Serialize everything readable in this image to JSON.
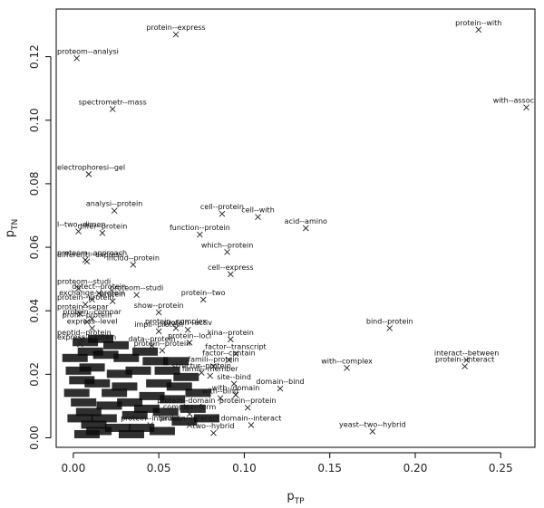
{
  "chart_data": {
    "type": "scatter",
    "xlabel": "p",
    "xlabel_sub": "TP",
    "ylabel": "p",
    "ylabel_sub": "TN",
    "xlim": [
      -0.01,
      0.27
    ],
    "ylim": [
      -0.003,
      0.135
    ],
    "x_ticks": [
      0.0,
      0.05,
      0.1,
      0.15,
      0.2,
      0.25
    ],
    "x_tick_labels": [
      "0.00",
      "0.05",
      "0.10",
      "0.15",
      "0.20",
      "0.25"
    ],
    "y_ticks": [
      0.0,
      0.02,
      0.04,
      0.06,
      0.08,
      0.1,
      0.12
    ],
    "y_tick_labels": [
      "0.00",
      "0.02",
      "0.04",
      "0.06",
      "0.08",
      "0.10",
      "0.12"
    ],
    "points": [
      {
        "x": 0.237,
        "y": 0.1285,
        "label": "protein--with"
      },
      {
        "x": 0.06,
        "y": 0.127,
        "label": "protein--express"
      },
      {
        "x": 0.002,
        "y": 0.1195,
        "label": "proteom--analysi"
      },
      {
        "x": 0.265,
        "y": 0.104,
        "label": "with--assoc"
      },
      {
        "x": 0.023,
        "y": 0.1035,
        "label": "spectrometr--mass"
      },
      {
        "x": 0.009,
        "y": 0.083,
        "label": "electrophoresi--gel"
      },
      {
        "x": 0.024,
        "y": 0.0715,
        "label": "analysi--protein"
      },
      {
        "x": 0.087,
        "y": 0.0705,
        "label": "cell--protein"
      },
      {
        "x": 0.108,
        "y": 0.0695,
        "label": "cell--with"
      },
      {
        "x": 0.136,
        "y": 0.066,
        "label": "acid--amino"
      },
      {
        "x": 0.003,
        "y": 0.065,
        "label": "l--two--dimen"
      },
      {
        "x": 0.017,
        "y": 0.0645,
        "label": "differ--protein"
      },
      {
        "x": 0.074,
        "y": 0.064,
        "label": "function--protein"
      },
      {
        "x": 0.09,
        "y": 0.0585,
        "label": "which--protein"
      },
      {
        "x": 0.007,
        "y": 0.056,
        "label": "proteom--approach"
      },
      {
        "x": 0.008,
        "y": 0.0555,
        "label": "differenti--express"
      },
      {
        "x": 0.035,
        "y": 0.0545,
        "label": "includ--protein"
      },
      {
        "x": 0.092,
        "y": 0.0515,
        "label": "cell--express"
      },
      {
        "x": 0.003,
        "y": 0.047,
        "label": "proteom--studi"
      },
      {
        "x": 0.015,
        "y": 0.0455,
        "label": "detect--protein"
      },
      {
        "x": 0.037,
        "y": 0.045,
        "label": "proteom--studi"
      },
      {
        "x": 0.011,
        "y": 0.0435,
        "label": "exchange--protein"
      },
      {
        "x": 0.023,
        "y": 0.043,
        "label": "protein"
      },
      {
        "x": 0.007,
        "y": 0.042,
        "label": "protein--protein"
      },
      {
        "x": 0.076,
        "y": 0.0435,
        "label": "protein--two"
      },
      {
        "x": 0.05,
        "y": 0.0395,
        "label": "show--protein"
      },
      {
        "x": 0.004,
        "y": 0.039,
        "label": "protein--separ"
      },
      {
        "x": 0.011,
        "y": 0.0375,
        "label": "protein--compar"
      },
      {
        "x": 0.008,
        "y": 0.0365,
        "label": "profil--protein"
      },
      {
        "x": 0.011,
        "y": 0.0345,
        "label": "express--level"
      },
      {
        "x": 0.06,
        "y": 0.0345,
        "label": "protein--complex"
      },
      {
        "x": 0.05,
        "y": 0.0335,
        "label": "impli--protein"
      },
      {
        "x": 0.067,
        "y": 0.034,
        "label": "protein--activ"
      },
      {
        "x": 0.185,
        "y": 0.0345,
        "label": "bind--protein"
      },
      {
        "x": 0.092,
        "y": 0.031,
        "label": "kina--protein"
      },
      {
        "x": 0.005,
        "y": 0.031,
        "label": "peptid--protein"
      },
      {
        "x": 0.004,
        "y": 0.0295,
        "label": "express--protein"
      },
      {
        "x": 0.068,
        "y": 0.03,
        "label": "protein--loci"
      },
      {
        "x": 0.046,
        "y": 0.029,
        "label": "data--protein"
      },
      {
        "x": 0.052,
        "y": 0.0275,
        "label": "protein--protein"
      },
      {
        "x": 0.095,
        "y": 0.0265,
        "label": "factor--transcript"
      },
      {
        "x": 0.091,
        "y": 0.0245,
        "label": "factor--contain"
      },
      {
        "x": 0.23,
        "y": 0.0245,
        "label": "interact--between"
      },
      {
        "x": 0.229,
        "y": 0.0225,
        "label": "protein--interact"
      },
      {
        "x": 0.16,
        "y": 0.022,
        "label": "with--complex"
      },
      {
        "x": 0.082,
        "y": 0.0225,
        "label": "famili--protein"
      },
      {
        "x": 0.075,
        "y": 0.0205,
        "label": "structur--protein"
      },
      {
        "x": 0.08,
        "y": 0.0195,
        "label": "famili--member"
      },
      {
        "x": 0.094,
        "y": 0.017,
        "label": "site--bind"
      },
      {
        "x": 0.121,
        "y": 0.0155,
        "label": "domain--bind"
      },
      {
        "x": 0.095,
        "y": 0.0135,
        "label": "with--domain"
      },
      {
        "x": 0.086,
        "y": 0.0125,
        "label": "with--bind"
      },
      {
        "x": 0.102,
        "y": 0.0095,
        "label": "protein--protein"
      },
      {
        "x": 0.066,
        "y": 0.0095,
        "label": "protein--domain"
      },
      {
        "x": 0.068,
        "y": 0.0075,
        "label": "complex--form"
      },
      {
        "x": 0.104,
        "y": 0.004,
        "label": "domain--interact"
      },
      {
        "x": 0.175,
        "y": 0.002,
        "label": "yeast--two--hybrid"
      },
      {
        "x": 0.082,
        "y": 0.0015,
        "label": "two--hybrid"
      },
      {
        "x": 0.068,
        "y": 0.004,
        "label": "protein--interact"
      },
      {
        "x": 0.045,
        "y": 0.004,
        "label": "protein--interact"
      }
    ],
    "cluster_points": [
      [
        0.001,
        0.025
      ],
      [
        0.003,
        0.021
      ],
      [
        0.005,
        0.018
      ],
      [
        0.002,
        0.014
      ],
      [
        0.006,
        0.011
      ],
      [
        0.009,
        0.008
      ],
      [
        0.004,
        0.006
      ],
      [
        0.012,
        0.004
      ],
      [
        0.015,
        0.002
      ],
      [
        0.008,
        0.001
      ],
      [
        0.018,
        0.006
      ],
      [
        0.021,
        0.01
      ],
      [
        0.024,
        0.014
      ],
      [
        0.014,
        0.017
      ],
      [
        0.011,
        0.022
      ],
      [
        0.019,
        0.026
      ],
      [
        0.027,
        0.02
      ],
      [
        0.03,
        0.016
      ],
      [
        0.033,
        0.011
      ],
      [
        0.036,
        0.007
      ],
      [
        0.04,
        0.003
      ],
      [
        0.043,
        0.009
      ],
      [
        0.046,
        0.013
      ],
      [
        0.05,
        0.017
      ],
      [
        0.038,
        0.021
      ],
      [
        0.031,
        0.025
      ],
      [
        0.025,
        0.029
      ],
      [
        0.016,
        0.031
      ],
      [
        0.054,
        0.008
      ],
      [
        0.058,
        0.012
      ],
      [
        0.062,
        0.016
      ],
      [
        0.055,
        0.021
      ],
      [
        0.048,
        0.024
      ],
      [
        0.042,
        0.027
      ],
      [
        0.065,
        0.005
      ],
      [
        0.07,
        0.009
      ],
      [
        0.073,
        0.014
      ],
      [
        0.066,
        0.019
      ],
      [
        0.06,
        0.024
      ],
      [
        0.078,
        0.006
      ],
      [
        0.026,
        0.003
      ],
      [
        0.034,
        0.001
      ],
      [
        0.052,
        0.002
      ],
      [
        0.01,
        0.027
      ],
      [
        0.007,
        0.03
      ]
    ]
  }
}
